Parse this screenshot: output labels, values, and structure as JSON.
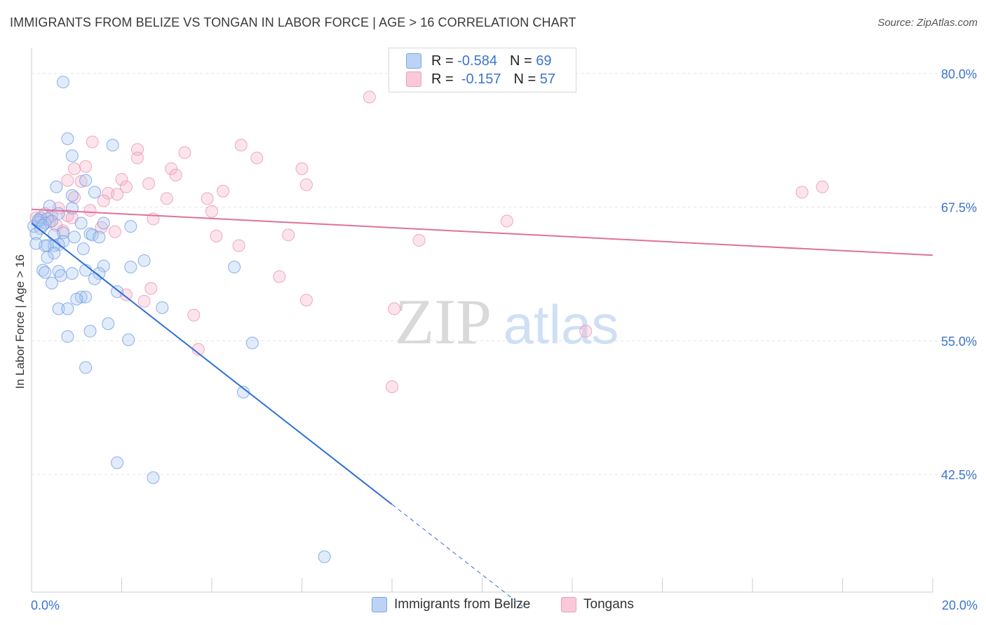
{
  "title": "IMMIGRANTS FROM BELIZE VS TONGAN IN LABOR FORCE | AGE > 16 CORRELATION CHART",
  "source": "Source: ZipAtlas.com",
  "watermark": {
    "zip": "ZIP",
    "atlas": "atlas"
  },
  "legend": {
    "rows": [
      {
        "r_label": "R =",
        "r_value": "-0.584",
        "n_label": "N =",
        "n_value": "69"
      },
      {
        "r_label": "R =",
        "r_value": "-0.157",
        "n_label": "N =",
        "n_value": "57"
      }
    ]
  },
  "chart_data": {
    "type": "scatter",
    "title": "IMMIGRANTS FROM BELIZE VS TONGAN IN LABOR FORCE | AGE > 16 CORRELATION CHART",
    "xlabel": "",
    "ylabel": "In Labor Force | Age > 16",
    "xlim": [
      0,
      20
    ],
    "ylim": [
      31.5,
      81.5
    ],
    "x_tick_labels": [
      "0.0%",
      "20.0%"
    ],
    "y_ticks": [
      42.5,
      55.0,
      67.5,
      80.0
    ],
    "y_tick_labels": [
      "42.5%",
      "55.0%",
      "67.5%",
      "80.0%"
    ],
    "grid": true,
    "legend_placement": "bottom-center",
    "colors": {
      "belize": "#6f9fe6",
      "tongan": "#f2a0bb",
      "belize_line": "#2f6fd6",
      "tongan_line": "#e0719a",
      "axis_text": "#3b74d1"
    },
    "series": [
      {
        "name": "Immigrants from Belize",
        "r": -0.584,
        "n": 69,
        "trend": {
          "x": [
            0,
            8.0
          ],
          "y": [
            66.0,
            39.7
          ],
          "dashed_to": [
            10.95,
            30.0
          ]
        },
        "points": [
          [
            0.7,
            79.2
          ],
          [
            0.8,
            73.9
          ],
          [
            1.8,
            73.3
          ],
          [
            0.9,
            72.3
          ],
          [
            1.2,
            70.0
          ],
          [
            0.55,
            69.4
          ],
          [
            1.4,
            68.9
          ],
          [
            0.9,
            68.6
          ],
          [
            0.4,
            67.6
          ],
          [
            0.9,
            67.4
          ],
          [
            0.6,
            66.9
          ],
          [
            0.2,
            66.5
          ],
          [
            0.35,
            66.4
          ],
          [
            0.15,
            66.1
          ],
          [
            0.3,
            66.0
          ],
          [
            1.1,
            66.0
          ],
          [
            1.6,
            66.0
          ],
          [
            0.05,
            65.7
          ],
          [
            2.2,
            65.7
          ],
          [
            0.2,
            65.5
          ],
          [
            0.1,
            65.0
          ],
          [
            0.7,
            65.1
          ],
          [
            1.3,
            65.0
          ],
          [
            1.35,
            64.9
          ],
          [
            0.5,
            64.9
          ],
          [
            1.5,
            64.7
          ],
          [
            0.1,
            64.1
          ],
          [
            0.7,
            64.3
          ],
          [
            0.95,
            64.7
          ],
          [
            0.6,
            64.0
          ],
          [
            0.35,
            63.9
          ],
          [
            0.5,
            63.9
          ],
          [
            0.3,
            63.9
          ],
          [
            1.15,
            63.6
          ],
          [
            0.5,
            63.2
          ],
          [
            0.35,
            62.8
          ],
          [
            2.5,
            62.5
          ],
          [
            1.6,
            62.0
          ],
          [
            2.2,
            61.9
          ],
          [
            4.5,
            61.9
          ],
          [
            0.25,
            61.6
          ],
          [
            1.2,
            61.6
          ],
          [
            0.3,
            61.4
          ],
          [
            0.6,
            61.5
          ],
          [
            0.9,
            61.3
          ],
          [
            1.5,
            61.3
          ],
          [
            0.65,
            61.1
          ],
          [
            1.4,
            60.8
          ],
          [
            0.45,
            60.4
          ],
          [
            1.9,
            59.6
          ],
          [
            1.1,
            59.1
          ],
          [
            1.2,
            59.1
          ],
          [
            1.0,
            58.9
          ],
          [
            0.6,
            58.0
          ],
          [
            0.8,
            58.0
          ],
          [
            2.9,
            58.1
          ],
          [
            1.7,
            56.6
          ],
          [
            1.3,
            55.9
          ],
          [
            0.8,
            55.4
          ],
          [
            2.15,
            55.1
          ],
          [
            4.9,
            54.8
          ],
          [
            1.2,
            52.5
          ],
          [
            4.7,
            50.2
          ],
          [
            1.9,
            43.6
          ],
          [
            2.7,
            42.2
          ],
          [
            6.5,
            34.8
          ],
          [
            0.15,
            66.3
          ],
          [
            0.25,
            65.8
          ],
          [
            0.45,
            66.2
          ]
        ]
      },
      {
        "name": "Tongans",
        "r": -0.157,
        "n": 57,
        "trend": {
          "x": [
            0,
            20.0
          ],
          "y": [
            67.3,
            63.0
          ]
        },
        "points": [
          [
            7.5,
            77.8
          ],
          [
            1.35,
            73.6
          ],
          [
            4.65,
            73.3
          ],
          [
            2.35,
            72.9
          ],
          [
            3.4,
            72.6
          ],
          [
            5.0,
            72.1
          ],
          [
            2.35,
            72.1
          ],
          [
            1.2,
            71.3
          ],
          [
            0.95,
            71.1
          ],
          [
            3.1,
            71.1
          ],
          [
            6.0,
            71.1
          ],
          [
            3.2,
            70.5
          ],
          [
            2.0,
            70.1
          ],
          [
            0.8,
            70.0
          ],
          [
            1.1,
            69.9
          ],
          [
            2.6,
            69.7
          ],
          [
            6.1,
            69.6
          ],
          [
            2.1,
            69.4
          ],
          [
            17.55,
            69.4
          ],
          [
            4.25,
            69.0
          ],
          [
            17.1,
            68.9
          ],
          [
            1.7,
            68.8
          ],
          [
            1.9,
            68.7
          ],
          [
            0.95,
            68.4
          ],
          [
            3.0,
            68.3
          ],
          [
            3.9,
            68.3
          ],
          [
            1.6,
            68.1
          ],
          [
            0.6,
            67.4
          ],
          [
            1.3,
            67.2
          ],
          [
            4.0,
            67.1
          ],
          [
            0.3,
            66.9
          ],
          [
            0.8,
            66.7
          ],
          [
            0.45,
            66.7
          ],
          [
            0.1,
            66.5
          ],
          [
            0.2,
            66.3
          ],
          [
            0.9,
            66.5
          ],
          [
            2.7,
            66.4
          ],
          [
            10.55,
            66.2
          ],
          [
            0.55,
            65.8
          ],
          [
            1.55,
            65.6
          ],
          [
            0.7,
            65.3
          ],
          [
            1.85,
            65.2
          ],
          [
            5.7,
            64.9
          ],
          [
            4.1,
            64.8
          ],
          [
            8.6,
            64.4
          ],
          [
            4.6,
            63.9
          ],
          [
            5.5,
            61.0
          ],
          [
            2.65,
            59.9
          ],
          [
            2.1,
            59.3
          ],
          [
            2.5,
            58.7
          ],
          [
            6.1,
            58.8
          ],
          [
            8.05,
            58.0
          ],
          [
            3.6,
            57.4
          ],
          [
            12.3,
            55.9
          ],
          [
            3.7,
            54.2
          ],
          [
            8.0,
            50.7
          ],
          [
            0.4,
            66.1
          ]
        ]
      }
    ]
  },
  "bottom_legend": [
    {
      "label": "Immigrants from Belize"
    },
    {
      "label": "Tongans"
    }
  ]
}
